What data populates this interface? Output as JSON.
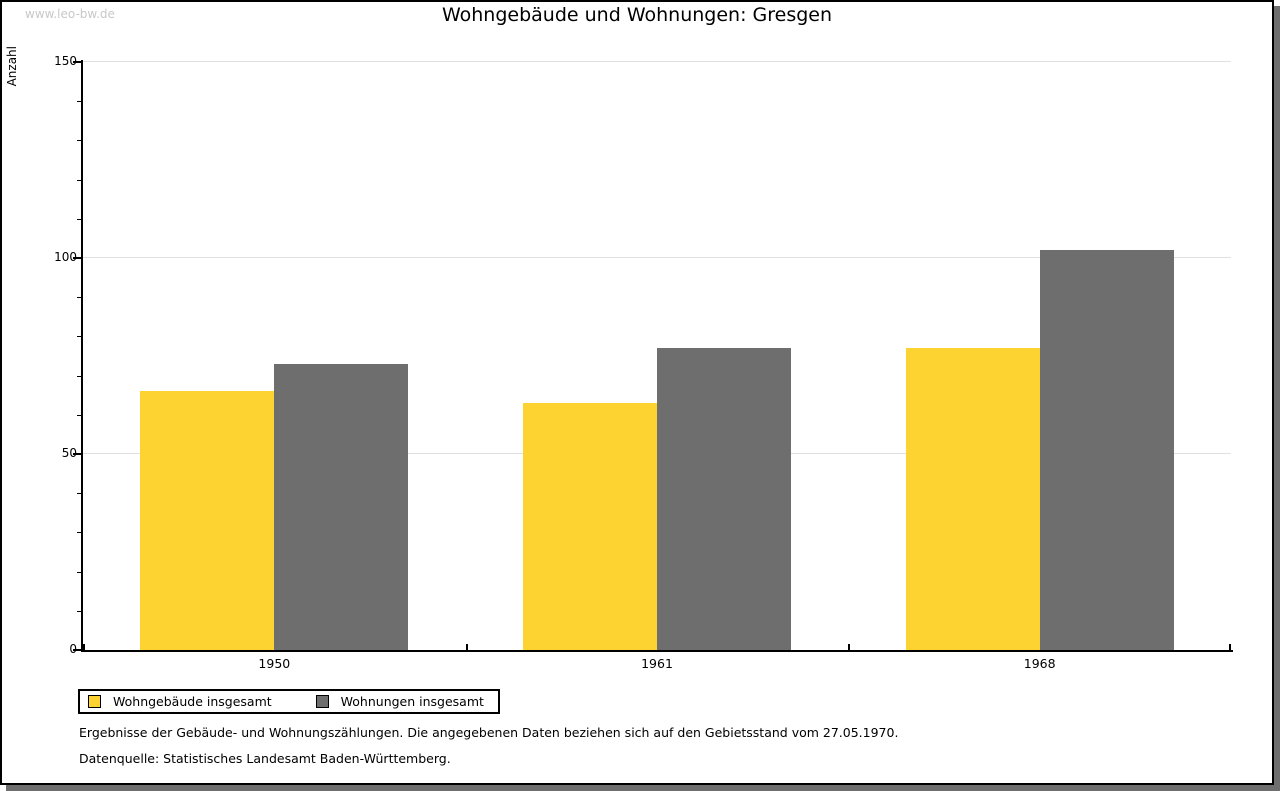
{
  "page": {
    "watermark": "www.leo-bw.de",
    "title": "Wohngebäude und Wohnungen: Gresgen",
    "footnotes": [
      "Ergebnisse der Gebäude- und Wohnungszählungen. Die angegebenen Daten beziehen sich auf den Gebietsstand vom 27.05.1970.",
      "Datenquelle: Statistisches Landesamt Baden-Württemberg."
    ]
  },
  "colors": {
    "bar_yellow": "#FCD330",
    "bar_gray": "#6E6E6E",
    "gridline": "#E0E0E0",
    "axis": "#000000",
    "watermark": "#C8C8C8",
    "panel_shadow": "#6E6E6E"
  },
  "chart_data": {
    "type": "bar",
    "title": "Wohngebäude und Wohnungen: Gresgen",
    "xlabel": "",
    "ylabel": "Anzahl",
    "categories": [
      "1950",
      "1961",
      "1968"
    ],
    "series": [
      {
        "name": "Wohngebäude insgesamt",
        "color": "#FCD330",
        "values": [
          66,
          63,
          77
        ]
      },
      {
        "name": "Wohnungen insgesamt",
        "color": "#6E6E6E",
        "values": [
          73,
          77,
          102
        ]
      }
    ],
    "ylim": [
      0,
      150
    ],
    "yticks": [
      0,
      50,
      100,
      150
    ],
    "minor_tick_step": 10,
    "grid": "horizontal",
    "legend_position": "bottom-left"
  }
}
